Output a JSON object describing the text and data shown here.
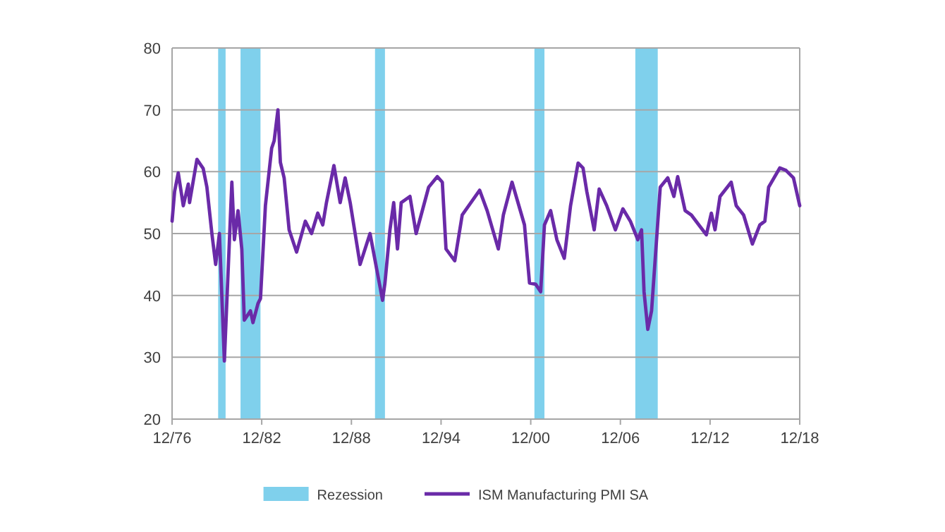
{
  "chart_data": {
    "type": "line",
    "x": [
      "1976-12",
      "1977-02",
      "1977-05",
      "1977-09",
      "1978-01",
      "1978-02",
      "1978-08",
      "1979-01",
      "1979-04",
      "1979-08",
      "1979-11",
      "1980-02",
      "1980-06",
      "1980-12",
      "1981-02",
      "1981-05",
      "1981-08",
      "1981-10",
      "1982-03",
      "1982-05",
      "1982-09",
      "1982-11",
      "1983-03",
      "1983-08",
      "1983-10",
      "1984-01",
      "1984-03",
      "1984-06",
      "1984-10",
      "1985-04",
      "1985-11",
      "1986-04",
      "1986-09",
      "1987-01",
      "1987-04",
      "1987-10",
      "1988-03",
      "1988-07",
      "1988-11",
      "1989-07",
      "1990-03",
      "1991-01",
      "1991-03",
      "1991-07",
      "1991-10",
      "1992-01",
      "1992-04",
      "1992-11",
      "1993-04",
      "1994-02",
      "1994-09",
      "1995-01",
      "1995-04",
      "1995-11",
      "1996-05",
      "1997-07",
      "1998-01",
      "1998-10",
      "1999-02",
      "1999-09",
      "2000-07",
      "2000-11",
      "2001-04",
      "2001-08",
      "2001-11",
      "2002-04",
      "2002-09",
      "2003-03",
      "2003-08",
      "2004-02",
      "2004-06",
      "2004-09",
      "2005-03",
      "2005-07",
      "2006-01",
      "2006-08",
      "2007-02",
      "2007-08",
      "2008-02",
      "2008-05",
      "2008-07",
      "2008-10",
      "2009-01",
      "2009-08",
      "2010-02",
      "2010-07",
      "2010-10",
      "2011-04",
      "2011-09",
      "2012-03",
      "2012-09",
      "2013-01",
      "2013-04",
      "2013-08",
      "2014-05",
      "2014-09",
      "2015-03",
      "2015-10",
      "2016-04",
      "2016-08",
      "2016-11",
      "2017-08",
      "2018-01",
      "2018-07",
      "2018-12"
    ],
    "series": [
      {
        "name": "ISM Manufacturing PMI SA",
        "color": "#6a2aa8",
        "values": [
          52,
          56.8,
          59.8,
          54.5,
          58,
          55,
          62,
          60.5,
          57.5,
          50,
          45,
          50,
          29.4,
          58.3,
          49,
          53.7,
          47.5,
          36,
          37.5,
          35.6,
          38.7,
          39.5,
          54.5,
          63.8,
          65,
          70,
          61.5,
          59,
          50.6,
          47,
          52,
          50,
          53.3,
          51.4,
          55,
          61,
          55,
          59,
          55,
          45,
          50,
          39.2,
          42,
          50.6,
          55,
          47.5,
          55,
          56,
          50,
          57.5,
          59.2,
          58.3,
          47.5,
          45.6,
          53,
          57,
          53.7,
          47.5,
          53,
          58.3,
          51.4,
          42,
          41.8,
          40.6,
          51.4,
          53.7,
          49,
          46,
          54.5,
          61.4,
          60.6,
          56.8,
          50.6,
          57.2,
          54.5,
          50.6,
          54,
          52,
          49,
          50.6,
          40.6,
          34.5,
          37.5,
          57.5,
          59,
          56,
          59.2,
          53.7,
          53,
          51.4,
          49.8,
          53.3,
          50.6,
          56,
          58.3,
          54.5,
          53,
          48.3,
          51.4,
          52,
          57.5,
          60.6,
          60.2,
          59,
          54.5
        ]
      }
    ],
    "xlim": [
      "1976-12",
      "2018-12"
    ],
    "xticks": [
      {
        "value": "1976-12",
        "label": "12/76"
      },
      {
        "value": "1982-12",
        "label": "12/82"
      },
      {
        "value": "1988-12",
        "label": "12/88"
      },
      {
        "value": "1994-12",
        "label": "12/94"
      },
      {
        "value": "2000-12",
        "label": "12/00"
      },
      {
        "value": "2006-12",
        "label": "12/06"
      },
      {
        "value": "2012-12",
        "label": "12/12"
      },
      {
        "value": "2018-12",
        "label": "12/18"
      }
    ],
    "ylim": [
      20,
      80
    ],
    "yticks": [
      20,
      30,
      40,
      50,
      60,
      70,
      80
    ],
    "bands": [
      {
        "axis": "x",
        "from": "1980-01",
        "to": "1980-07",
        "label": "Rezession",
        "color": "#7fd0ec"
      },
      {
        "axis": "x",
        "from": "1981-07",
        "to": "1982-11",
        "color": "#7fd0ec"
      },
      {
        "axis": "x",
        "from": "1990-07",
        "to": "1991-03",
        "color": "#7fd0ec"
      },
      {
        "axis": "x",
        "from": "2001-03",
        "to": "2001-11",
        "color": "#7fd0ec"
      },
      {
        "axis": "x",
        "from": "2007-12",
        "to": "2009-06",
        "color": "#7fd0ec"
      }
    ],
    "grid": "y",
    "legend": "bottom",
    "line_style": "solid"
  }
}
